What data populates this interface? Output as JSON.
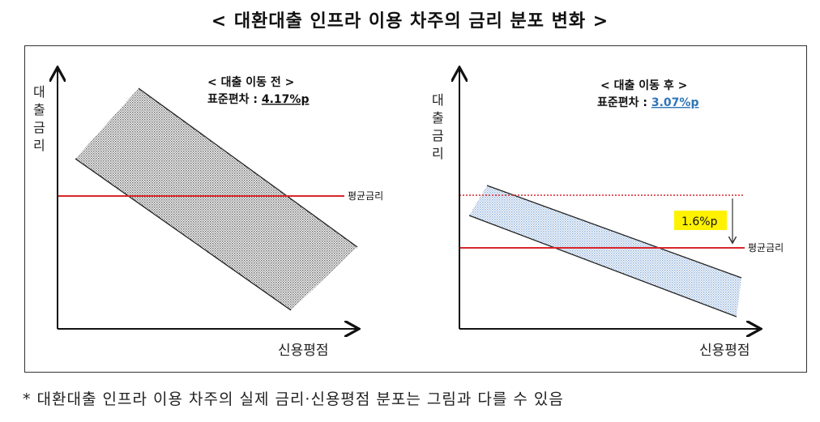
{
  "title": "< 대환대출 인프라 이용 차주의 금리 분포 변화 >",
  "left_panel": {
    "heading": "< 대출 이동 전 >",
    "std_label": "표준편차 : ",
    "std_value": "4.17%p",
    "y_axis_label": [
      "대",
      "출",
      "금",
      "리"
    ],
    "x_axis_label": "신용평점",
    "avg_rate_label": "평균금리",
    "band_color": "#7a7a7a",
    "avg_line_color": "#d9262b"
  },
  "right_panel": {
    "heading": "< 대출 이동 후 >",
    "std_label": "표준편차 : ",
    "std_value": "3.07%p",
    "y_axis_label": [
      "대",
      "출",
      "금",
      "리"
    ],
    "x_axis_label": "신용평점",
    "avg_rate_label": "평균금리",
    "change_label": "1.6%p",
    "band_color": "#6f97c8",
    "avg_line_color": "#d9262b",
    "highlight_color": "#fff200",
    "std_value_color": "#2e75b6"
  },
  "footnote": "* 대환대출 인프라 이용 차주의 실제 금리·신용평점 분포는 그림과 다를 수 있음"
}
